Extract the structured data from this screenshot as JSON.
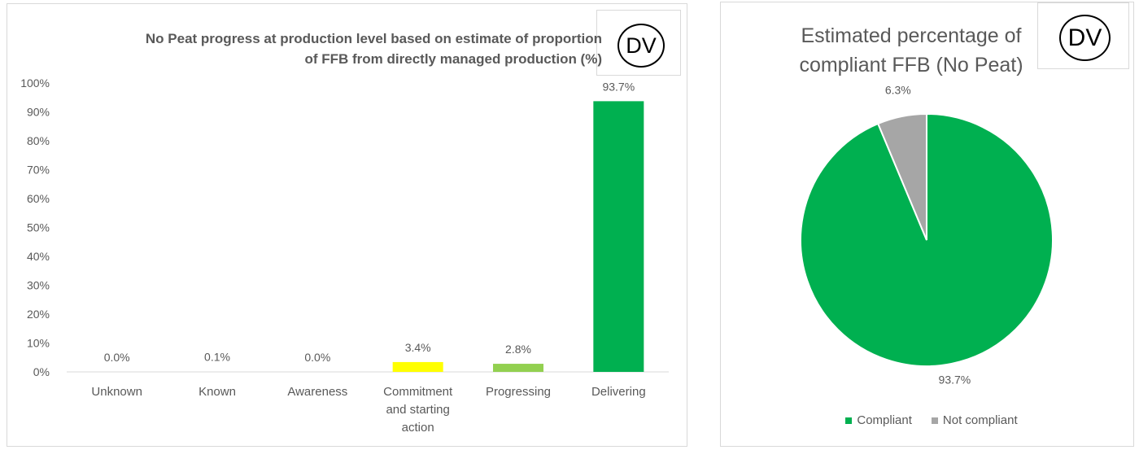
{
  "badges": {
    "bar_badge": "DV",
    "pie_badge": "DV"
  },
  "chart_data": [
    {
      "type": "bar",
      "title_line1": "No Peat progress at production level based on estimate of proportion",
      "title_line2": "of FFB from directly managed production (%)",
      "categories": [
        "Unknown",
        "Known",
        "Awareness",
        "Commitment and starting action",
        "Progressing",
        "Delivering"
      ],
      "values": [
        0.0,
        0.1,
        0.0,
        3.4,
        2.8,
        93.7
      ],
      "data_labels": [
        "0.0%",
        "0.1%",
        "0.0%",
        "3.4%",
        "2.8%",
        "93.7%"
      ],
      "bar_colors": [
        "#00b050",
        "#00b050",
        "#00b050",
        "#ffff00",
        "#92d050",
        "#00b050"
      ],
      "ylim": [
        0,
        100
      ],
      "yticks": [
        "0%",
        "10%",
        "20%",
        "30%",
        "40%",
        "50%",
        "60%",
        "70%",
        "80%",
        "90%",
        "100%"
      ],
      "grid": false,
      "xlabel": "",
      "ylabel": ""
    },
    {
      "type": "pie",
      "title_line1": "Estimated percentage of",
      "title_line2": "compliant FFB (No Peat)",
      "labels": [
        "Compliant",
        "Not compliant"
      ],
      "values": [
        93.7,
        6.3
      ],
      "data_labels": [
        "93.7%",
        "6.3%"
      ],
      "colors": [
        "#00b050",
        "#a6a6a6"
      ],
      "legend_position": "bottom"
    }
  ]
}
